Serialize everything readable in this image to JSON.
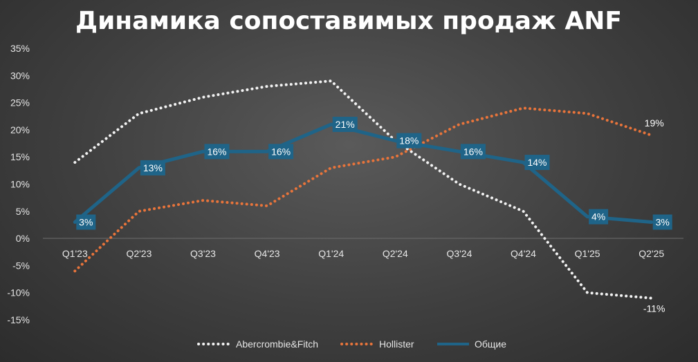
{
  "chart_data": {
    "type": "line",
    "title": "Динамика сопоставимых продаж ANF",
    "categories": [
      "Q1'23",
      "Q2'23",
      "Q3'23",
      "Q4'23",
      "Q1'24",
      "Q2'24",
      "Q3'24",
      "Q4'24",
      "Q1'25",
      "Q2'25"
    ],
    "y_ticks": [
      "35%",
      "30%",
      "25%",
      "20%",
      "15%",
      "10%",
      "5%",
      "0%",
      "-5%",
      "-10%",
      "-15%"
    ],
    "ylim": [
      -15,
      35
    ],
    "grid": false,
    "legend_position": "bottom",
    "series": [
      {
        "name": "Abercrombie&Fitch",
        "values": [
          14,
          23,
          26,
          28,
          29,
          18,
          10,
          5,
          -10,
          -11
        ],
        "color": "#f2f2f2",
        "style": "dotted",
        "labels": {
          "9": "-11%"
        }
      },
      {
        "name": "Hollister",
        "values": [
          -6,
          5,
          7,
          6,
          13,
          15,
          21,
          24,
          23,
          19
        ],
        "color": "#e8743b",
        "style": "dotted",
        "labels": {
          "9": "19%"
        }
      },
      {
        "name": "Общие",
        "values": [
          3,
          13,
          16,
          16,
          21,
          18,
          16,
          14,
          4,
          3
        ],
        "color": "#1f6488",
        "style": "solid",
        "labels": {
          "0": "3%",
          "1": "13%",
          "2": "16%",
          "3": "16%",
          "4": "21%",
          "5": "18%",
          "6": "16%",
          "7": "14%",
          "8": "4%",
          "9": "3%"
        }
      }
    ]
  }
}
